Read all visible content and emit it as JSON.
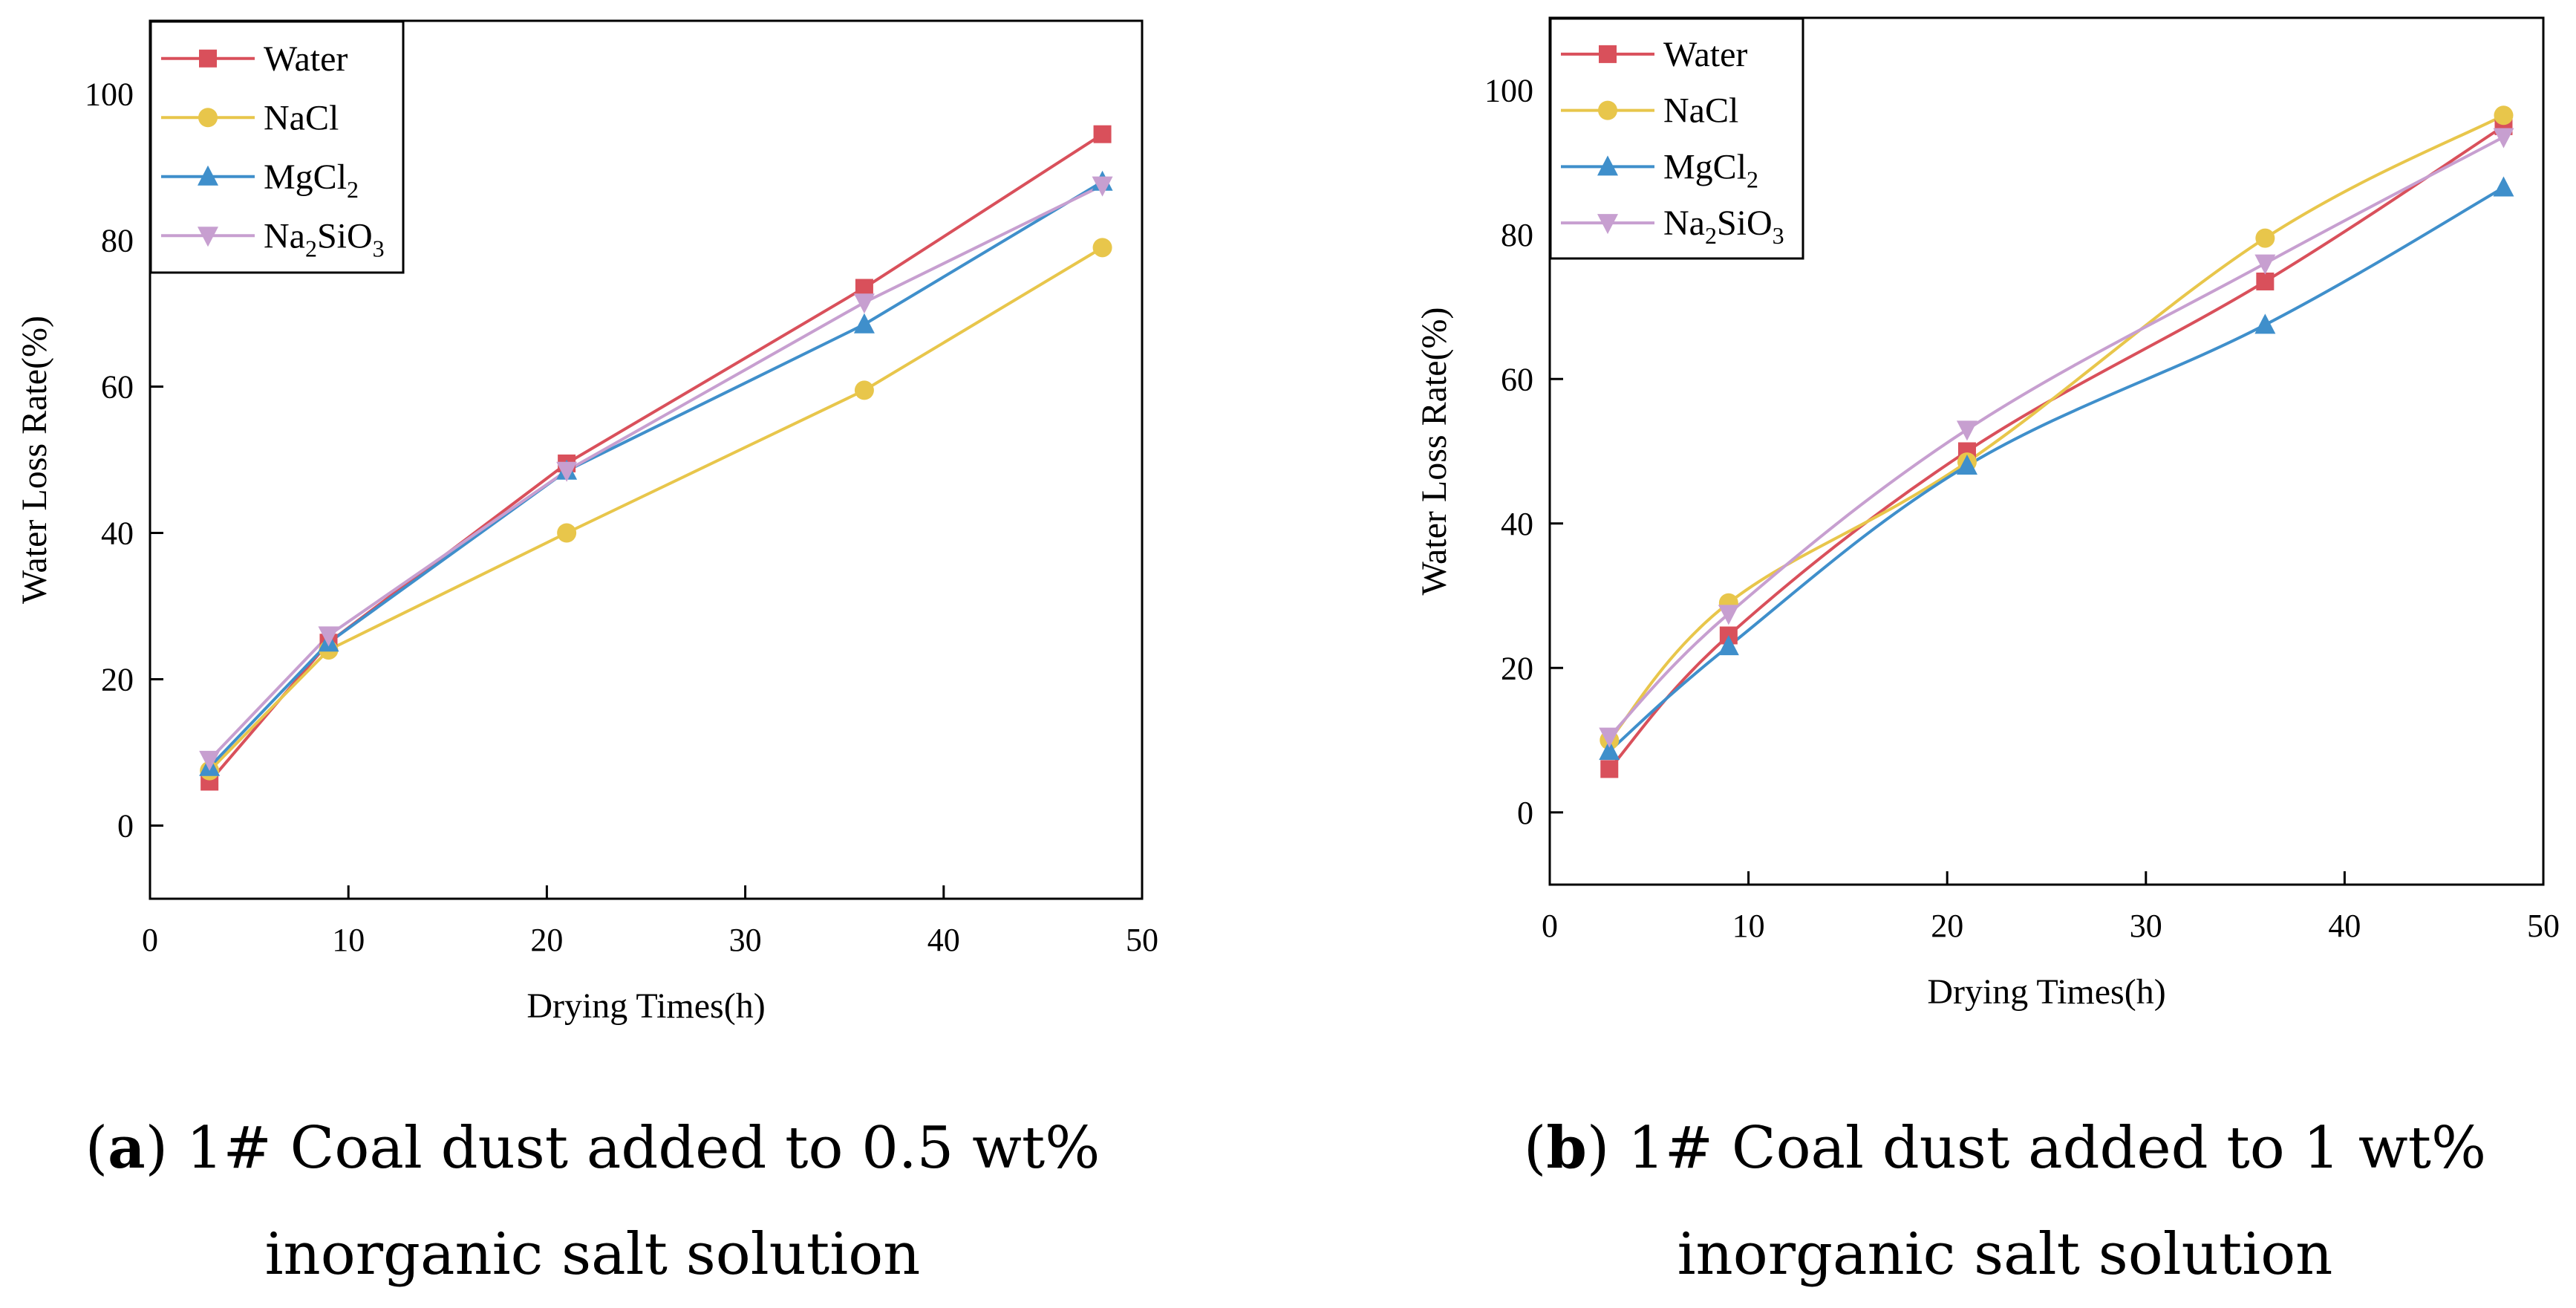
{
  "chart_data": [
    {
      "type": "line",
      "panel_id": "a",
      "caption_lines": [
        "1# Coal dust added to 0.5 wt%",
        "inorganic salt solution"
      ],
      "xlabel": "Drying Times(h)",
      "ylabel": "Water Loss Rate(%)",
      "xlim": [
        0,
        50
      ],
      "ylim": [
        -10,
        110
      ],
      "xticks": [
        0,
        10,
        20,
        30,
        40,
        50
      ],
      "yticks": [
        0,
        20,
        40,
        60,
        80,
        100
      ],
      "curve": "straight",
      "x": [
        3,
        9,
        21,
        36,
        48
      ],
      "series": [
        {
          "name": "Water",
          "base": "Water",
          "sub": "",
          "base2": "",
          "sub2": "",
          "marker": "square",
          "color": "#d9505b",
          "values": [
            6,
            25,
            49.5,
            73.5,
            94.5
          ]
        },
        {
          "name": "NaCl",
          "base": "NaCl",
          "sub": "",
          "base2": "",
          "sub2": "",
          "marker": "circle",
          "color": "#e8c64b",
          "values": [
            7.5,
            24,
            40,
            59.5,
            79
          ]
        },
        {
          "name": "MgCl2",
          "base": "MgCl",
          "sub": "2",
          "base2": "",
          "sub2": "",
          "marker": "triangle-up",
          "color": "#3f8fcb",
          "values": [
            8,
            25,
            48.5,
            68.5,
            88
          ]
        },
        {
          "name": "Na2SiO3",
          "base": "Na",
          "sub": "2",
          "base2": "SiO",
          "sub2": "3",
          "marker": "triangle-down",
          "color": "#c79fd0",
          "values": [
            9,
            26,
            48.5,
            71.5,
            87.5
          ]
        }
      ]
    },
    {
      "type": "line",
      "panel_id": "b",
      "caption_lines": [
        "1# Coal dust added to 1 wt%",
        "inorganic salt solution"
      ],
      "xlabel": "Drying Times(h)",
      "ylabel": "Water Loss Rate(%)",
      "xlim": [
        0,
        50
      ],
      "ylim": [
        -10,
        110
      ],
      "xticks": [
        0,
        10,
        20,
        30,
        40,
        50
      ],
      "yticks": [
        0,
        20,
        40,
        60,
        80,
        100
      ],
      "curve": "smooth",
      "x": [
        3,
        9,
        21,
        36,
        48
      ],
      "series": [
        {
          "name": "Water",
          "base": "Water",
          "sub": "",
          "base2": "",
          "sub2": "",
          "marker": "square",
          "color": "#d9505b",
          "values": [
            6,
            24.5,
            50,
            73.5,
            95
          ]
        },
        {
          "name": "NaCl",
          "base": "NaCl",
          "sub": "",
          "base2": "",
          "sub2": "",
          "marker": "circle",
          "color": "#e8c64b",
          "values": [
            10,
            29,
            48.5,
            79.5,
            96.5
          ]
        },
        {
          "name": "MgCl2",
          "base": "MgCl",
          "sub": "2",
          "base2": "",
          "sub2": "",
          "marker": "triangle-up",
          "color": "#3f8fcb",
          "values": [
            8.5,
            23,
            48,
            67.5,
            86.5
          ]
        },
        {
          "name": "Na2SiO3",
          "base": "Na",
          "sub": "2",
          "base2": "SiO",
          "sub2": "3",
          "marker": "triangle-down",
          "color": "#c79fd0",
          "values": [
            10.5,
            27.5,
            53,
            76,
            93.5
          ]
        }
      ]
    }
  ]
}
